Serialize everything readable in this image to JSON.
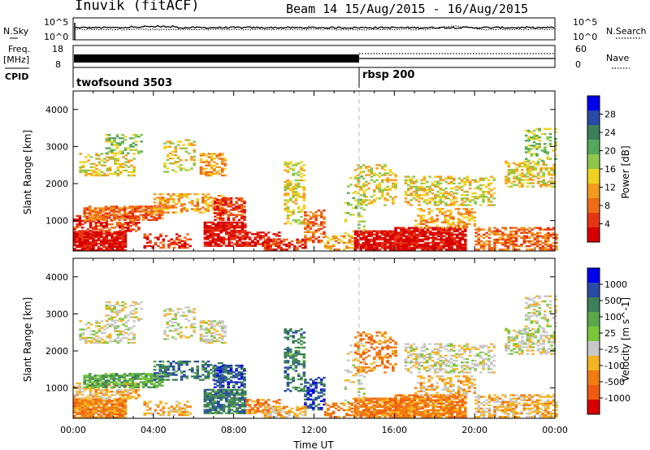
{
  "header": {
    "station": "Inuvik (fitACF)",
    "beam_date": "Beam 14 15/Aug/2015 - 16/Aug/2015"
  },
  "colors": {
    "power_scale": [
      "#0000ee",
      "#2a4aa8",
      "#3d7f5a",
      "#55a85a",
      "#8ec84a",
      "#f0d21e",
      "#f49a1e",
      "#ef6b15",
      "#e63512",
      "#d80000"
    ],
    "velocity_scale": [
      "#0000ee",
      "#2a4aa8",
      "#3d7f5a",
      "#5aa84a",
      "#7ac83a",
      "#c8c8c8",
      "#f5b422",
      "#f07c12",
      "#f05a10",
      "#d80000"
    ]
  },
  "chart_data": [
    {
      "type": "line",
      "name": "nsky_nsearch",
      "left_label": "N.Sky",
      "left_ticks": [
        "10^5",
        "10^0"
      ],
      "right_ticks": [
        "10^5",
        "10^0"
      ],
      "right_legend": "N.Search",
      "x_range_hours": [
        0,
        24
      ]
    },
    {
      "type": "line",
      "name": "freq_nave",
      "left_label_1": "Freq.",
      "left_label_2": "[MHz]",
      "left_ticks": [
        "18",
        "8"
      ],
      "right_ticks": [
        "60",
        "0"
      ],
      "right_legend": "Nave",
      "x_range_hours": [
        0,
        24
      ]
    },
    {
      "type": "table",
      "name": "cpid",
      "label": "CPID",
      "segments": [
        {
          "start": 0,
          "end": 14.0,
          "text": "twofsound 3503"
        },
        {
          "start": 14.0,
          "end": 24,
          "text": "rbsp 200"
        }
      ]
    },
    {
      "type": "heatmap",
      "name": "power",
      "ylabel": "Slant Range [km]",
      "yticks": [
        1000,
        2000,
        3000,
        4000
      ],
      "ylim": [
        180,
        4500
      ],
      "xlim": [
        0,
        24
      ],
      "colorbar_label": "Power [dB]",
      "colorbar_ticks": [
        "28",
        "24",
        "20",
        "16",
        "12",
        "8",
        "4"
      ]
    },
    {
      "type": "heatmap",
      "name": "velocity",
      "ylabel": "Slant Range [km]",
      "yticks": [
        1000,
        2000,
        3000,
        4000
      ],
      "ylim": [
        180,
        4500
      ],
      "xlim": [
        0,
        24
      ],
      "xticks": [
        "00:00",
        "04:00",
        "08:00",
        "12:00",
        "16:00",
        "20:00",
        "00:00"
      ],
      "xlabel": "Time UT",
      "colorbar_label": "Velocity [m s^-1]",
      "colorbar_ticks": [
        "1000",
        "500",
        "100",
        "25",
        "-25",
        "-100",
        "-500",
        "-1000"
      ]
    }
  ]
}
